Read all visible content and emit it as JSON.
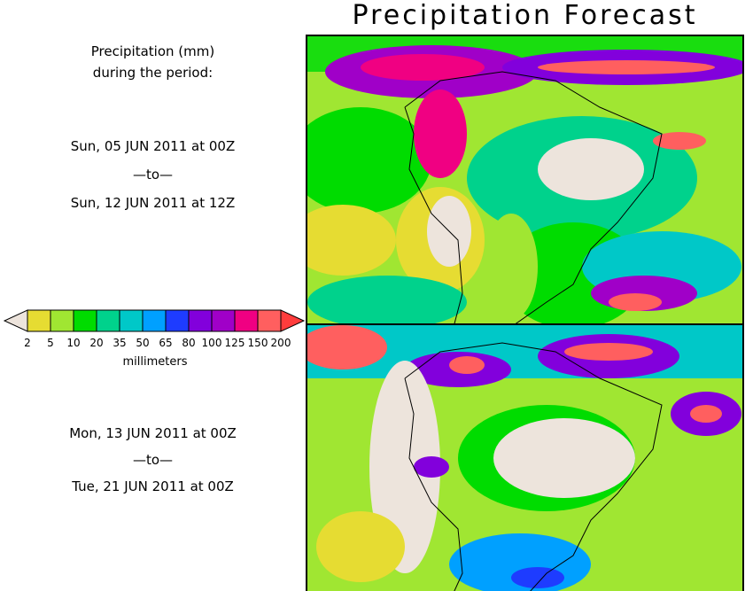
{
  "title": "Precipitation Forecast",
  "legend_heading": [
    "Precipitation (mm)",
    "during the period:"
  ],
  "period1": {
    "start": "Sun, 05 JUN 2011 at 00Z",
    "sep": "—to—",
    "end": "Sun, 12 JUN 2011 at 12Z"
  },
  "period2": {
    "start": "Mon, 13 JUN 2011 at 00Z",
    "sep": "—to—",
    "end": "Tue, 21 JUN 2011 at 00Z"
  },
  "colorbar": {
    "unit": "millimeters",
    "ticks": [
      "2",
      "5",
      "10",
      "20",
      "35",
      "50",
      "65",
      "80",
      "100",
      "125",
      "150",
      "200"
    ],
    "below_color": "#ede4dc",
    "colors": [
      "#e6dc32",
      "#a0e632",
      "#00dc00",
      "#00d28c",
      "#00c8c8",
      "#00a0ff",
      "#1e3cff",
      "#8200dc",
      "#a000c8",
      "#f00082",
      "#ff5f5f"
    ],
    "above_color": "#ff3c3c"
  }
}
